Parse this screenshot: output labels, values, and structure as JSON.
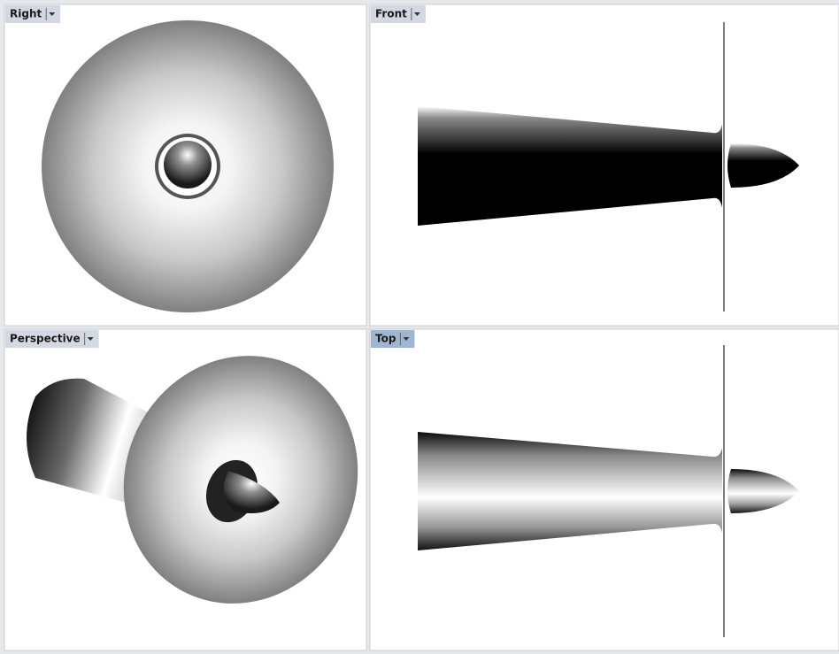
{
  "viewports": [
    {
      "label": "Right",
      "active": false
    },
    {
      "label": "Front",
      "active": false
    },
    {
      "label": "Perspective",
      "active": false
    },
    {
      "label": "Top",
      "active": true
    }
  ]
}
